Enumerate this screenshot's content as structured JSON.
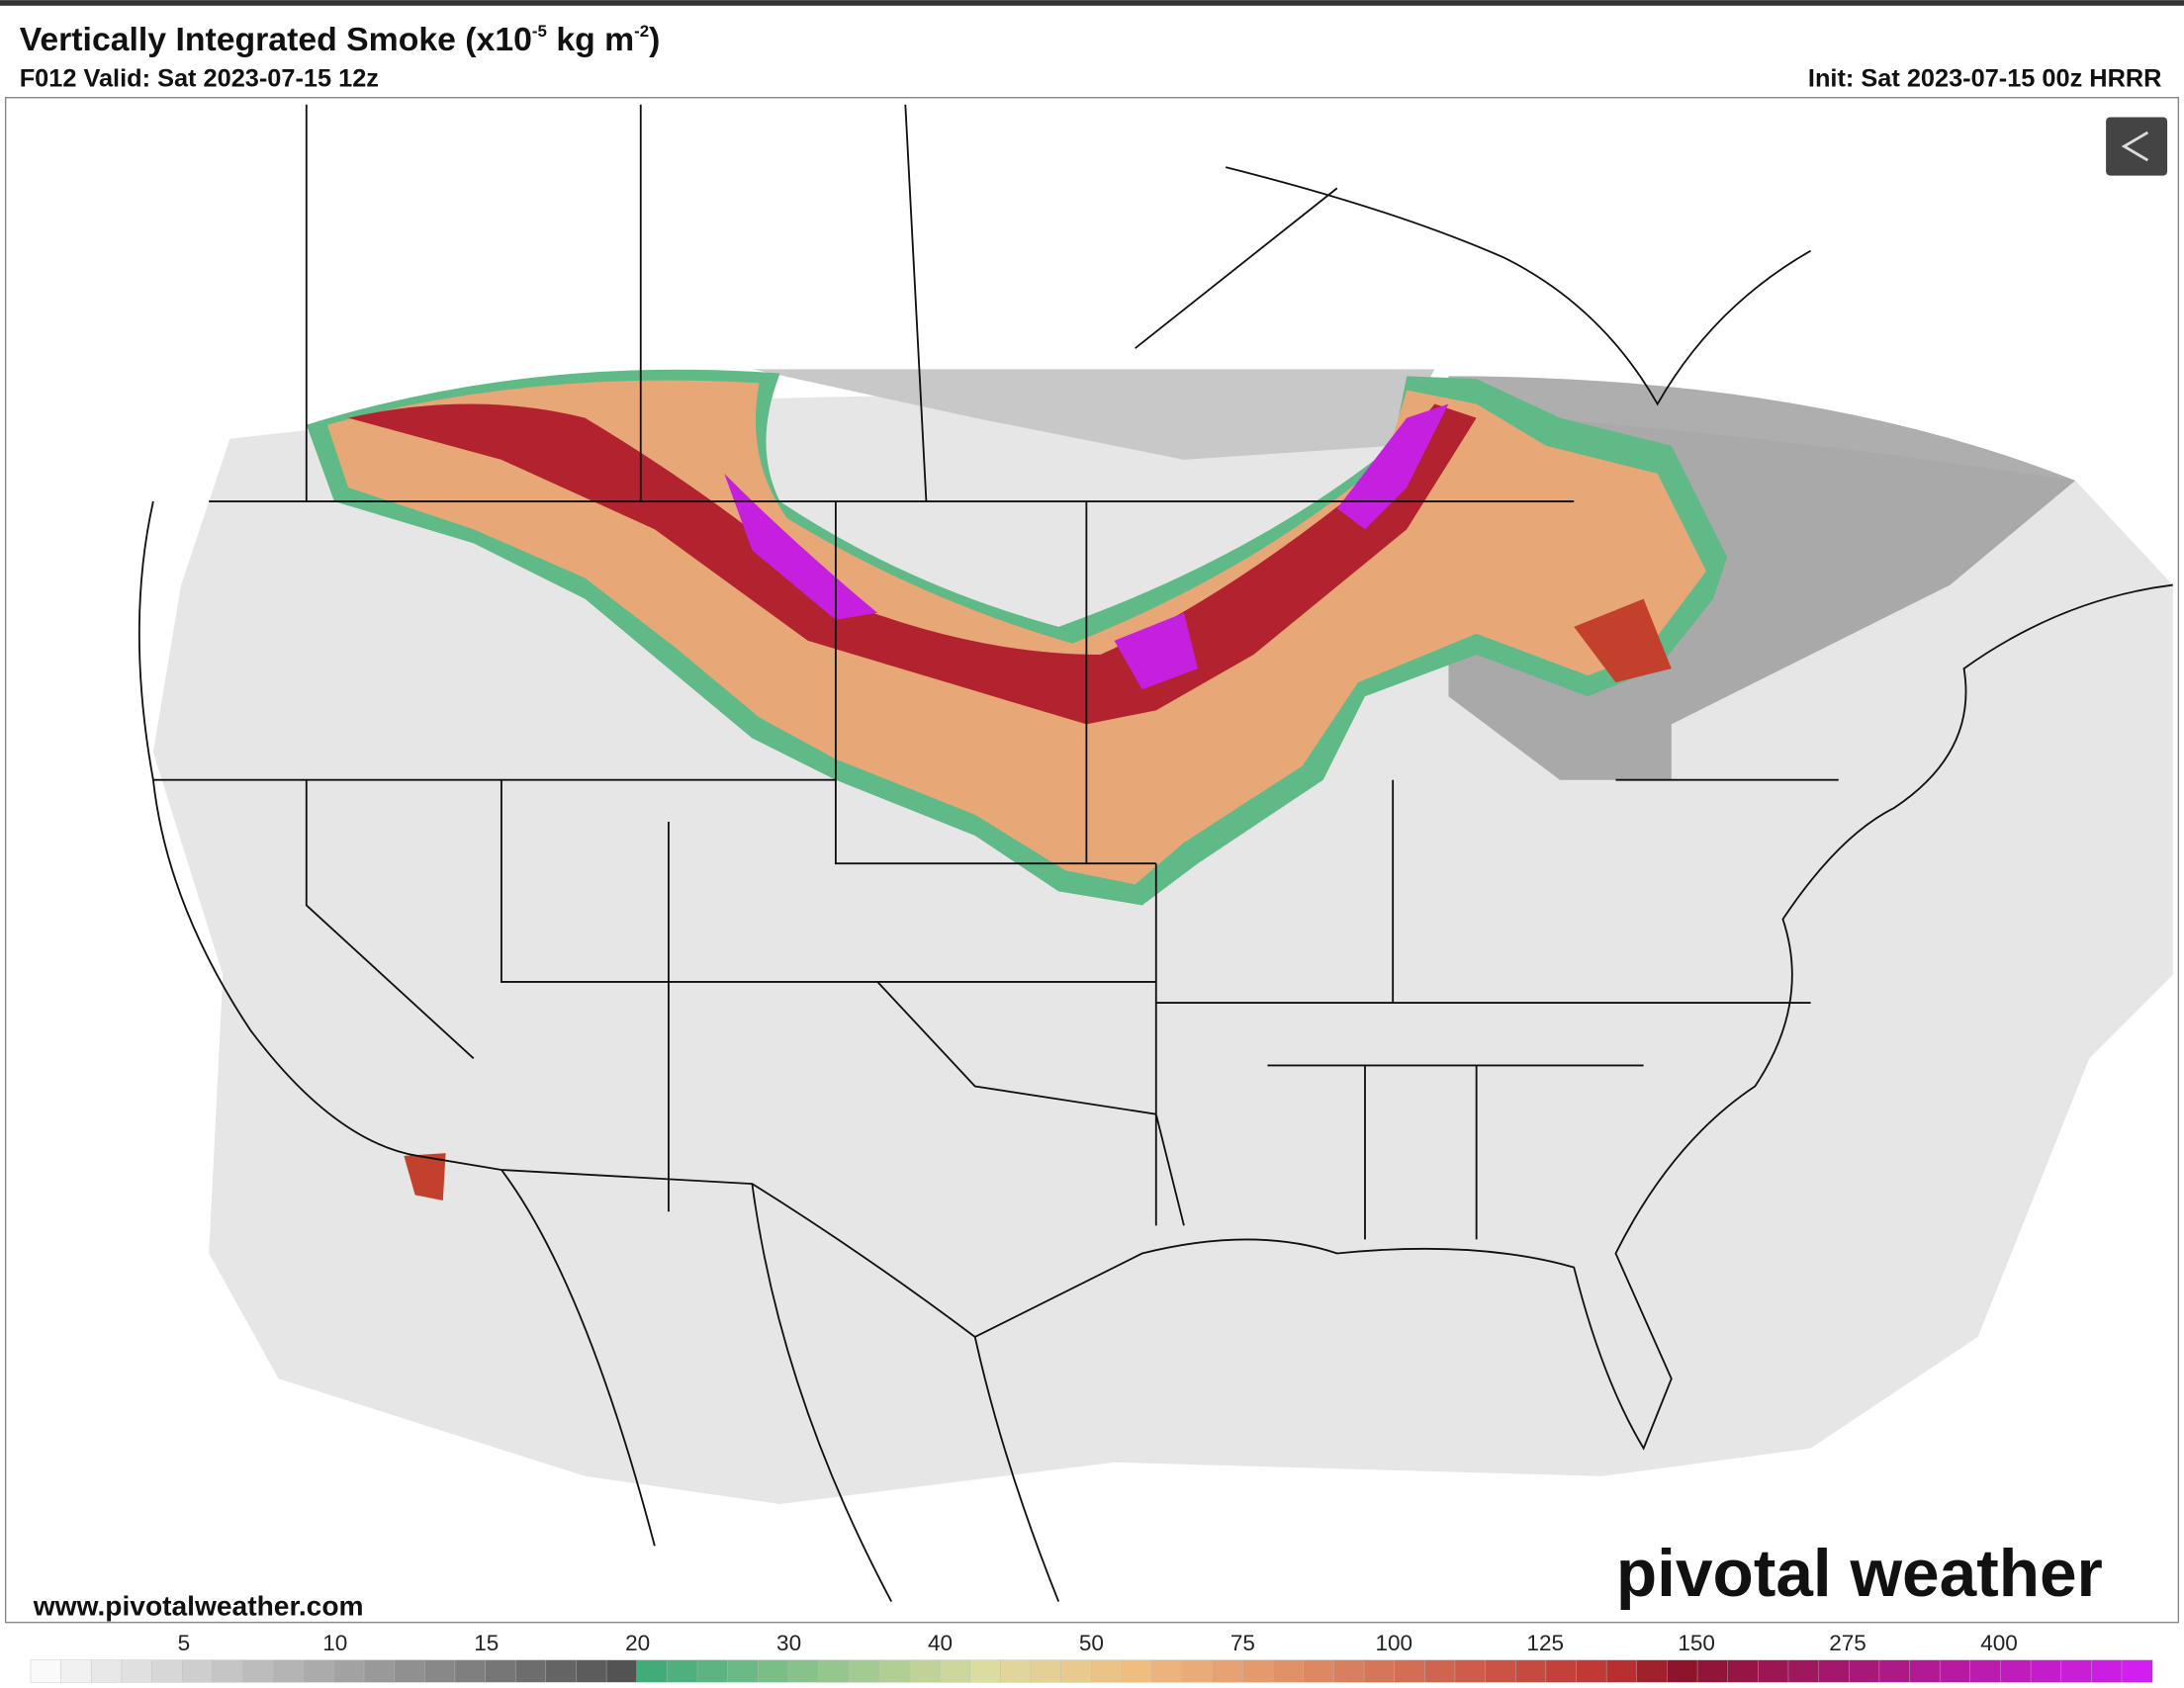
{
  "header": {
    "title_parts": [
      "Vertically Integrated Smoke (x10",
      "-5",
      " kg m",
      "-2",
      ")"
    ],
    "valid": "F012 Valid: Sat 2023-07-15 12z",
    "init": "Init: Sat 2023-07-15 00z HRRR"
  },
  "footer": {
    "website": "www.pivotalweather.com",
    "brand": "pivotal weather"
  },
  "colorbar": {
    "labels": [
      5,
      10,
      15,
      20,
      30,
      40,
      50,
      75,
      100,
      125,
      150,
      275,
      400
    ]
  }
}
